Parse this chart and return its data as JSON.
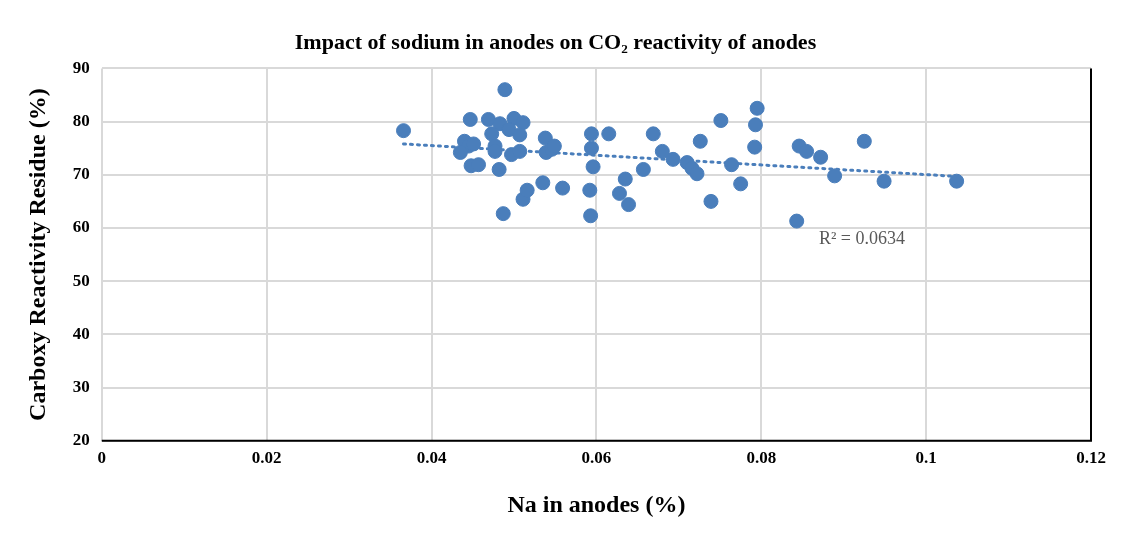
{
  "chart_data": {
    "type": "scatter",
    "title": "Impact of sodium in anodes on CO₂ reactivity of anodes",
    "xlabel": "Na in anodes (%)",
    "ylabel": "Carboxy Reactivity Residue (%)",
    "xlim": [
      0,
      0.12
    ],
    "xticks": [
      0,
      0.02,
      0.04,
      0.06,
      0.08,
      0.1,
      0.12
    ],
    "ylim": [
      20,
      90
    ],
    "yticks": [
      20,
      30,
      40,
      50,
      60,
      70,
      80,
      90
    ],
    "grid": true,
    "legend": false,
    "marker": "circle",
    "series": [
      {
        "color": "#4a7ebb",
        "x": [
          0.0366,
          0.0447,
          0.0469,
          0.0483,
          0.05,
          0.0511,
          0.0489,
          0.0473,
          0.0494,
          0.0507,
          0.044,
          0.0445,
          0.0451,
          0.0435,
          0.0477,
          0.0477,
          0.0497,
          0.0507,
          0.0448,
          0.0457,
          0.0482,
          0.0487,
          0.0511,
          0.0516,
          0.0535,
          0.0559,
          0.0539,
          0.0538,
          0.0546,
          0.0549,
          0.0594,
          0.0594,
          0.0596,
          0.0592,
          0.0593,
          0.0615,
          0.0628,
          0.0635,
          0.0639,
          0.0657,
          0.0669,
          0.068,
          0.0693,
          0.071,
          0.0716,
          0.0722,
          0.0726,
          0.0739,
          0.0751,
          0.0764,
          0.0775,
          0.0792,
          0.0793,
          0.0795,
          0.0843,
          0.0846,
          0.0855,
          0.0872,
          0.0889,
          0.0925,
          0.0949,
          0.1037
        ],
        "values": [
          78.3,
          80.4,
          80.4,
          79.6,
          80.6,
          79.8,
          86.0,
          77.7,
          78.5,
          77.5,
          76.3,
          75.4,
          75.8,
          74.2,
          75.4,
          74.4,
          73.8,
          74.4,
          71.7,
          71.9,
          71.0,
          62.7,
          65.4,
          67.1,
          68.5,
          67.5,
          74.2,
          76.9,
          74.8,
          75.4,
          77.7,
          75.0,
          71.5,
          67.1,
          62.3,
          77.7,
          66.5,
          69.2,
          64.4,
          71.0,
          77.7,
          74.4,
          72.9,
          72.3,
          71.2,
          70.2,
          76.3,
          65.0,
          80.2,
          71.9,
          68.3,
          75.2,
          79.4,
          82.5,
          61.3,
          75.4,
          74.4,
          73.3,
          69.8,
          76.3,
          68.8,
          68.8
        ]
      },
      {
        "type": "line",
        "color": "#4a7ebb",
        "line_style": "dotted",
        "marker": "none",
        "x": [
          0.0366,
          0.1037
        ],
        "values": [
          75.8,
          69.7
        ]
      }
    ],
    "annotations": [
      "R² = 0.0634"
    ]
  }
}
